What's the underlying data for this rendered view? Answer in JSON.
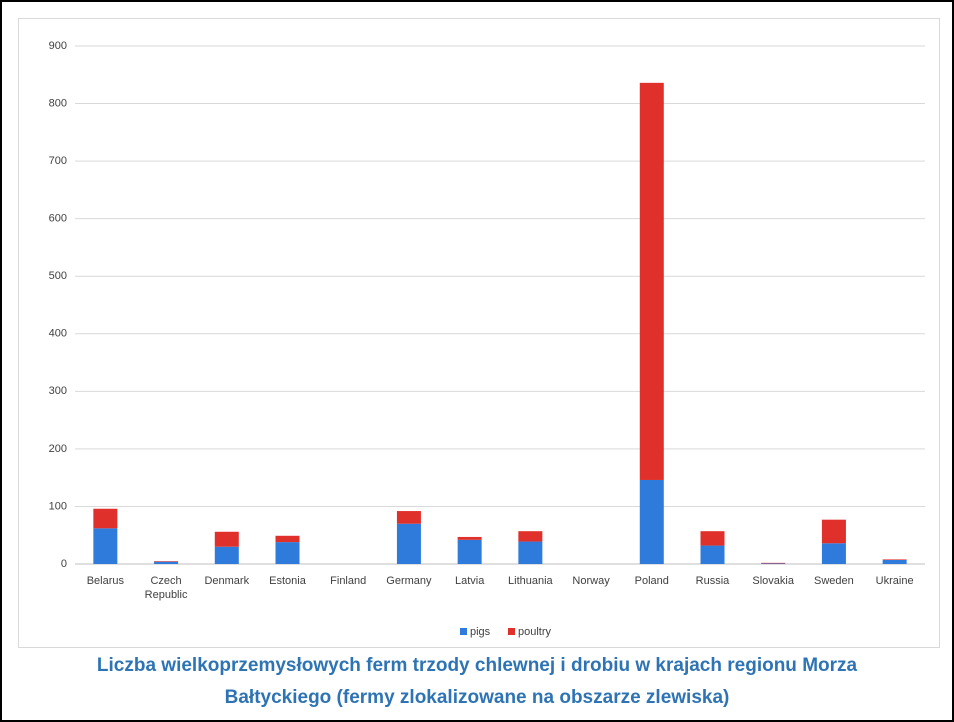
{
  "chart_data": {
    "type": "stacked_bar",
    "title": "Liczba wielkoprzemysłowych ferm trzody chlewnej i drobiu w krajach regionu Morza Bałtyckiego (fermy zlokalizowane na obszarze zlewiska)",
    "categories": [
      "Belarus",
      "Czech Republic",
      "Denmark",
      "Estonia",
      "Finland",
      "Germany",
      "Latvia",
      "Lithuania",
      "Norway",
      "Poland",
      "Russia",
      "Slovakia",
      "Sweden",
      "Ukraine"
    ],
    "series": [
      {
        "name": "pigs",
        "color": "#2e7bdc",
        "values": [
          62,
          4,
          30,
          38,
          0,
          70,
          42,
          39,
          0,
          146,
          32,
          1,
          36,
          7
        ]
      },
      {
        "name": "poultry",
        "color": "#e0302c",
        "values": [
          34,
          1,
          26,
          11,
          0,
          22,
          5,
          18,
          0,
          690,
          25,
          1,
          41,
          1
        ]
      }
    ],
    "ylim": [
      0,
      900
    ],
    "yticks": [
      0,
      100,
      200,
      300,
      400,
      500,
      600,
      700,
      800,
      900
    ],
    "grid": true,
    "legend": "bottom"
  }
}
